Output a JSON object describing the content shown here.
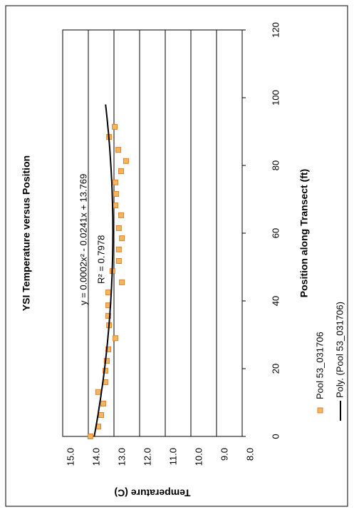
{
  "chart_data": {
    "type": "scatter",
    "title": "YSI Temperature versus Position",
    "x_label": "Position along Transect (ft)",
    "y_label": "Temperature (C)",
    "series": [
      {
        "name": "Pool 53_031706",
        "color": "#f2b661",
        "x": [
          0,
          2.9,
          6.3,
          9.7,
          13.1,
          16,
          19.4,
          22.3,
          25.7,
          29,
          32.8,
          35.6,
          38.7,
          42.5,
          45.5,
          48.8,
          51.8,
          55.2,
          58.5,
          61.5,
          65.3,
          68.2,
          71.6,
          75,
          78.3,
          81.3,
          84.6,
          88.4,
          91.4
        ],
        "values": [
          13.92,
          13.61,
          13.5,
          13.42,
          13.61,
          13.33,
          13.33,
          13.28,
          13.22,
          12.94,
          13.19,
          13.22,
          13.22,
          13.22,
          12.69,
          13.06,
          12.81,
          12.81,
          12.69,
          12.81,
          12.72,
          12.94,
          12.92,
          12.94,
          12.72,
          12.53,
          12.83,
          13.19,
          12.97
        ]
      }
    ],
    "trendline": {
      "name": "Poly. (Pool 53_031706)",
      "color": "#000000",
      "coefficients": [
        0.0002,
        -0.0241,
        13.769
      ],
      "x_range": [
        0,
        98
      ],
      "equation": "y = 0.0002x² - 0.0241x + 13.769",
      "r_squared": "R² = 0.7978"
    },
    "xlim": [
      0,
      120
    ],
    "xticks": [
      0,
      20,
      40,
      60,
      80,
      100,
      120
    ],
    "ylim": [
      8,
      15
    ],
    "yticks": [
      {
        "value": 8,
        "label": "8.0"
      },
      {
        "value": 9,
        "label": "9.0"
      },
      {
        "value": 10,
        "label": "10.0"
      },
      {
        "value": 11,
        "label": "11.0"
      },
      {
        "value": 12,
        "label": "12.0"
      },
      {
        "value": 13,
        "label": "13.0"
      },
      {
        "value": 14,
        "label": "14.0"
      },
      {
        "value": 15,
        "label": "15.0"
      }
    ],
    "grid": true,
    "rotated": true
  }
}
